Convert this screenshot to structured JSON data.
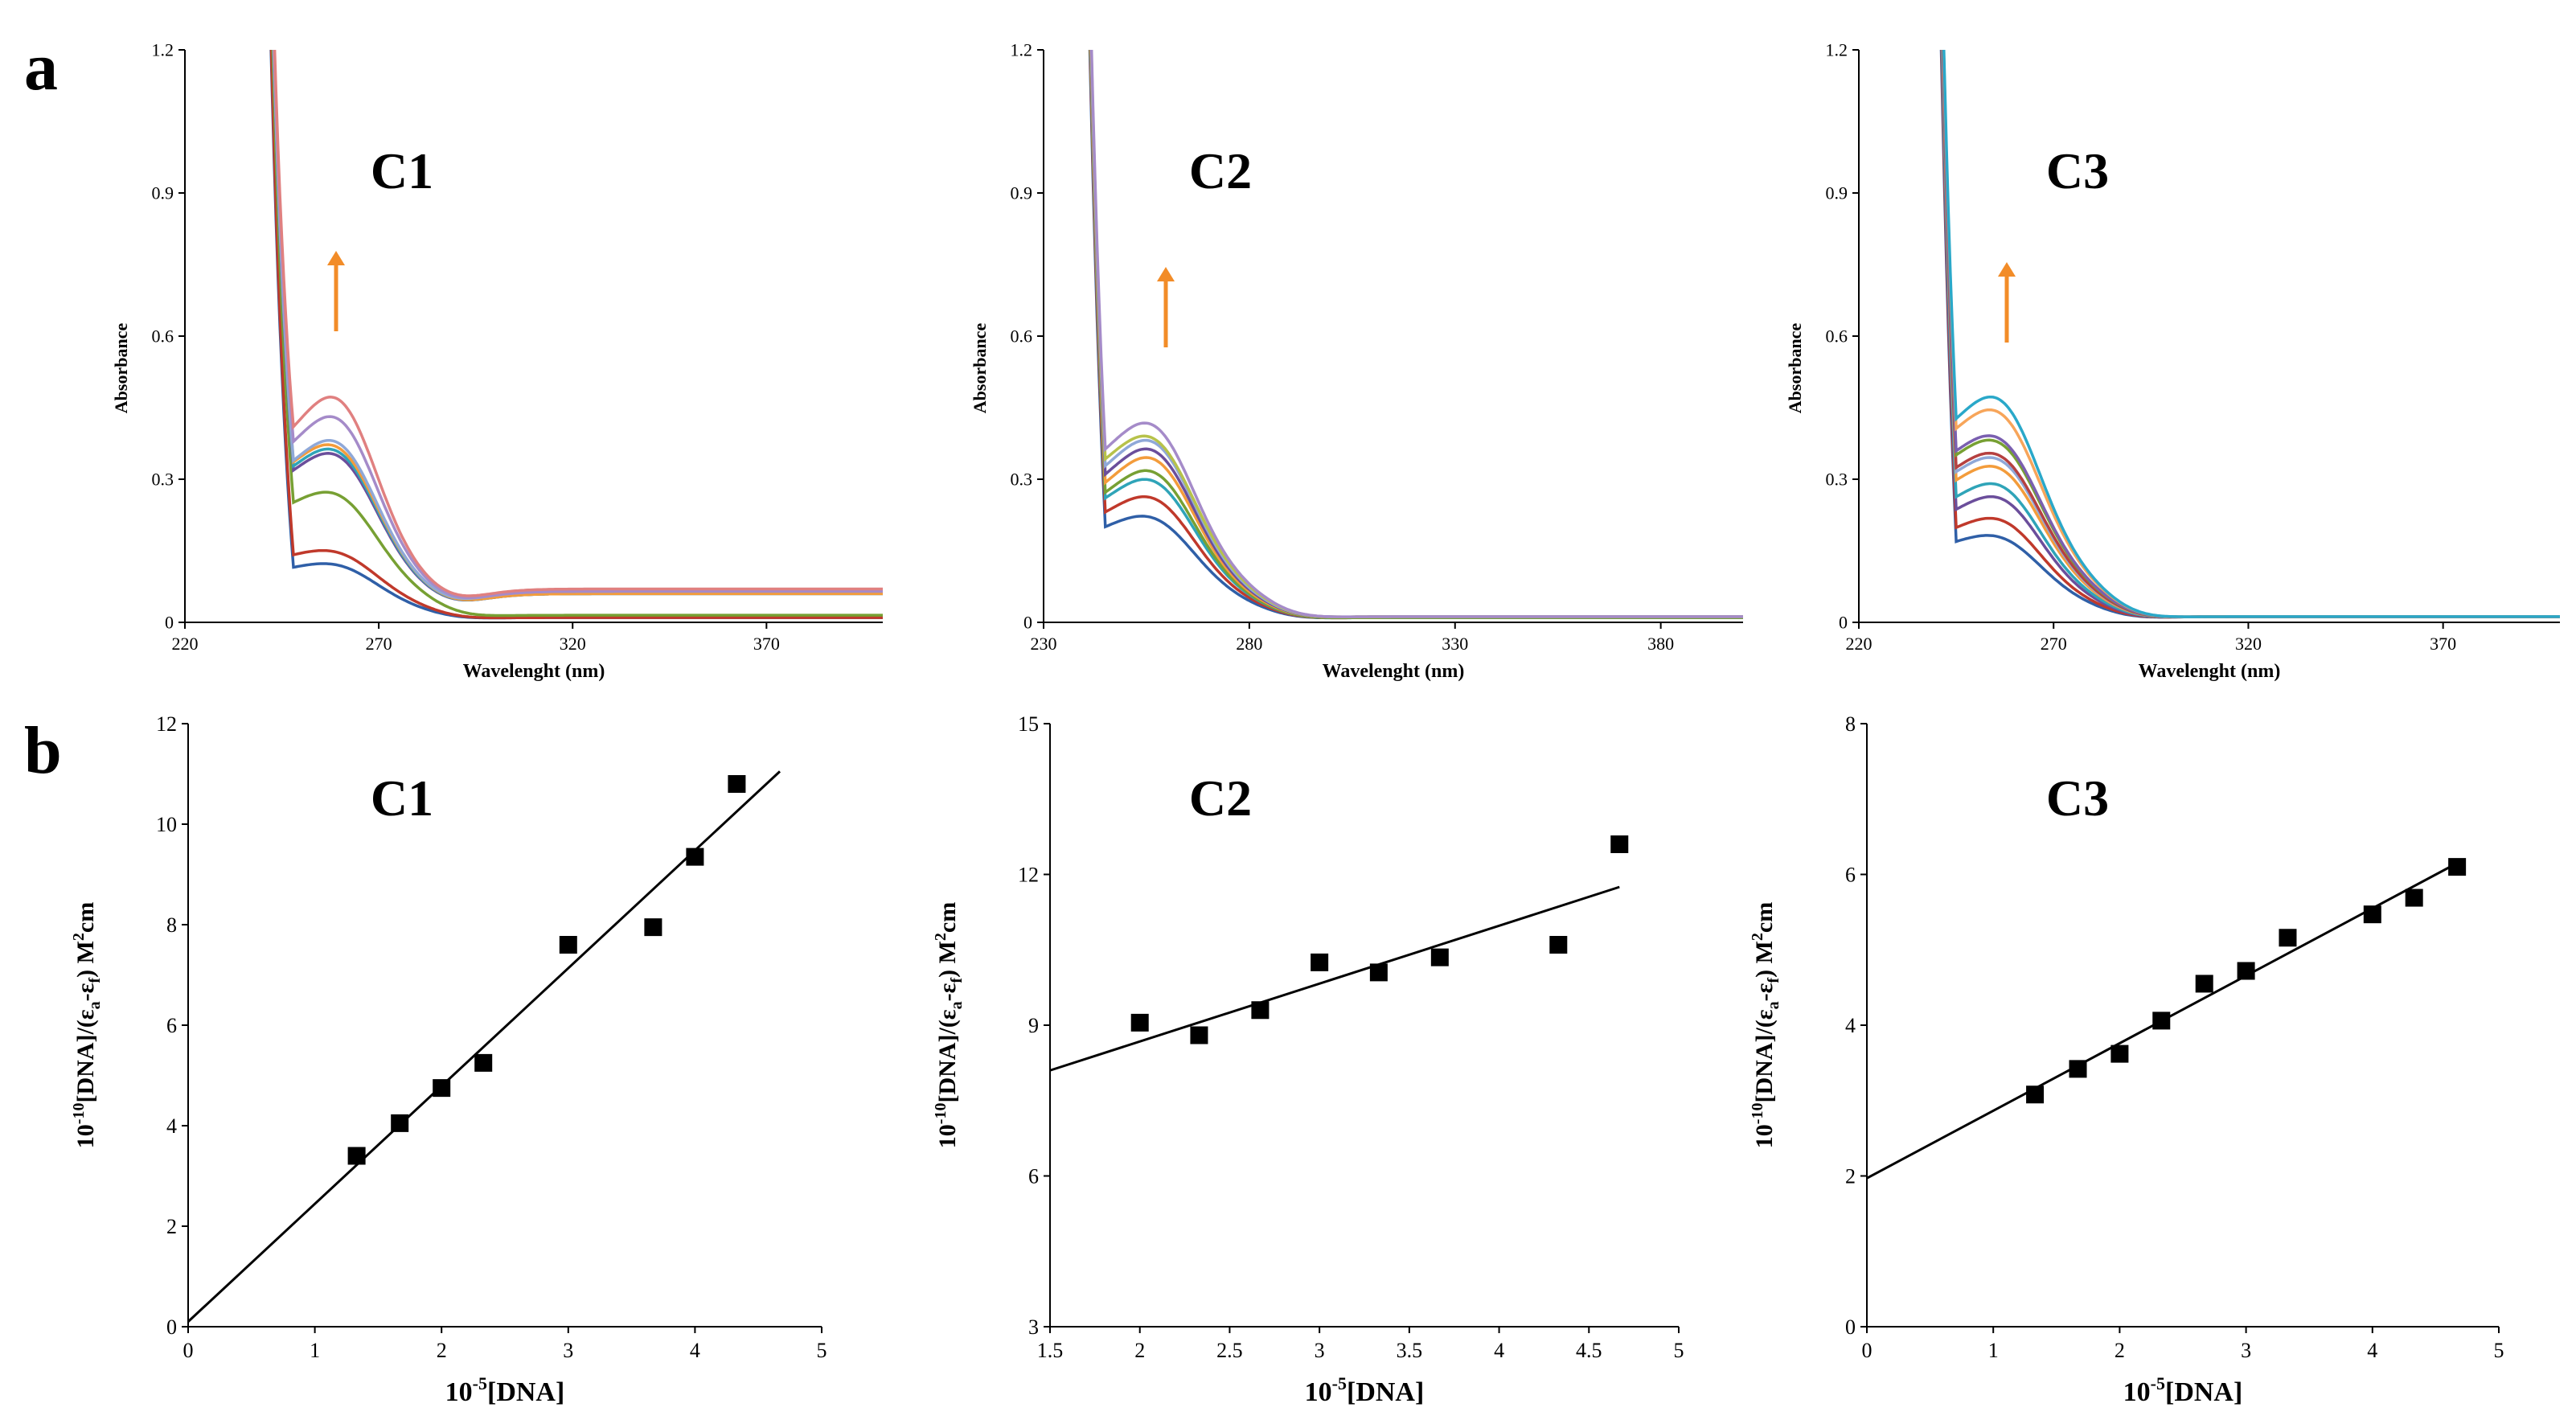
{
  "panel_labels": {
    "a": "a",
    "b": "b"
  },
  "chart_data": [
    {
      "id": "a1",
      "type": "line",
      "label": "C1",
      "xlabel": "Wavelenght (nm)",
      "ylabel": "Absorbance",
      "xlim": [
        220,
        400
      ],
      "ylim": [
        0,
        1.2
      ],
      "xticks": [
        220,
        270,
        320,
        370
      ],
      "yticks": [
        0,
        0.3,
        0.6,
        0.9,
        1.2
      ],
      "ytick_labels": [
        "0",
        "0.3",
        "0.6",
        "0.9",
        "1.2"
      ],
      "arrow": "increasing",
      "series": [
        {
          "name": "s1",
          "color": "#2F5FA7",
          "baseline": 0.13,
          "peak": 0.135,
          "tail": 0.01
        },
        {
          "name": "s2",
          "color": "#C0392B",
          "baseline": 0.16,
          "peak": 0.165,
          "tail": 0.01
        },
        {
          "name": "s3",
          "color": "#77A033",
          "baseline": 0.28,
          "peak": 0.3,
          "tail": 0.015
        },
        {
          "name": "s4",
          "color": "#6B4E9B",
          "baseline": 0.35,
          "peak": 0.39,
          "tail": 0.06
        },
        {
          "name": "s5",
          "color": "#2FA4B8",
          "baseline": 0.36,
          "peak": 0.4,
          "tail": 0.06
        },
        {
          "name": "s6",
          "color": "#F39C3B",
          "baseline": 0.37,
          "peak": 0.41,
          "tail": 0.06
        },
        {
          "name": "s7",
          "color": "#8FA8D8",
          "baseline": 0.37,
          "peak": 0.42,
          "tail": 0.065
        },
        {
          "name": "s8",
          "color": "#A58BC9",
          "baseline": 0.41,
          "peak": 0.475,
          "tail": 0.065
        },
        {
          "name": "s9",
          "color": "#E08080",
          "baseline": 0.44,
          "peak": 0.52,
          "tail": 0.07
        }
      ]
    },
    {
      "id": "a2",
      "type": "line",
      "label": "C2",
      "xlabel": "Wavelenght (nm)",
      "ylabel": "Absorbance",
      "xlim": [
        230,
        400
      ],
      "ylim": [
        0,
        1.2
      ],
      "xticks": [
        230,
        280,
        330,
        380
      ],
      "yticks": [
        0,
        0.3,
        0.6,
        0.9,
        1.2
      ],
      "ytick_labels": [
        "0",
        "0.3",
        "0.6",
        "0.9",
        "1.2"
      ],
      "arrow": "increasing",
      "series": [
        {
          "name": "s1",
          "color": "#2F5FA7",
          "baseline": 0.22,
          "peak": 0.245,
          "tail": 0.01
        },
        {
          "name": "s2",
          "color": "#C0392B",
          "baseline": 0.25,
          "peak": 0.29,
          "tail": 0.01
        },
        {
          "name": "s3",
          "color": "#2FA4B8",
          "baseline": 0.28,
          "peak": 0.33,
          "tail": 0.01
        },
        {
          "name": "s4",
          "color": "#77A033",
          "baseline": 0.29,
          "peak": 0.35,
          "tail": 0.01
        },
        {
          "name": "s5",
          "color": "#F39C3B",
          "baseline": 0.31,
          "peak": 0.38,
          "tail": 0.012
        },
        {
          "name": "s6",
          "color": "#6B4E9B",
          "baseline": 0.33,
          "peak": 0.4,
          "tail": 0.012
        },
        {
          "name": "s7",
          "color": "#8FA8D8",
          "baseline": 0.35,
          "peak": 0.42,
          "tail": 0.012
        },
        {
          "name": "s8",
          "color": "#B7C24A",
          "baseline": 0.37,
          "peak": 0.43,
          "tail": 0.012
        },
        {
          "name": "s9",
          "color": "#A58BC9",
          "baseline": 0.39,
          "peak": 0.46,
          "tail": 0.012
        }
      ]
    },
    {
      "id": "a3",
      "type": "line",
      "label": "C3",
      "xlabel": "Wavelenght (nm)",
      "ylabel": "Absorbance",
      "xlim": [
        220,
        400
      ],
      "ylim": [
        0,
        1.2
      ],
      "xticks": [
        220,
        270,
        320,
        370
      ],
      "yticks": [
        0,
        0.3,
        0.6,
        0.9,
        1.2
      ],
      "ytick_labels": [
        "0",
        "0.3",
        "0.6",
        "0.9",
        "1.2"
      ],
      "arrow": "increasing",
      "series": [
        {
          "name": "s1",
          "color": "#2F5FA7",
          "baseline": 0.19,
          "peak": 0.2,
          "tail": 0.012
        },
        {
          "name": "s2",
          "color": "#C0392B",
          "baseline": 0.22,
          "peak": 0.24,
          "tail": 0.012
        },
        {
          "name": "s3",
          "color": "#6B4E9B",
          "baseline": 0.26,
          "peak": 0.29,
          "tail": 0.012
        },
        {
          "name": "s4",
          "color": "#2FA4B8",
          "baseline": 0.29,
          "peak": 0.32,
          "tail": 0.012
        },
        {
          "name": "s5",
          "color": "#F39C3B",
          "baseline": 0.33,
          "peak": 0.36,
          "tail": 0.012
        },
        {
          "name": "s6",
          "color": "#8FA8D8",
          "baseline": 0.35,
          "peak": 0.38,
          "tail": 0.012
        },
        {
          "name": "s7",
          "color": "#B54040",
          "baseline": 0.36,
          "peak": 0.39,
          "tail": 0.012
        },
        {
          "name": "s8",
          "color": "#77A033",
          "baseline": 0.39,
          "peak": 0.42,
          "tail": 0.012
        },
        {
          "name": "s9",
          "color": "#7A5FB0",
          "baseline": 0.4,
          "peak": 0.43,
          "tail": 0.012
        },
        {
          "name": "s10",
          "color": "#F7A55A",
          "baseline": 0.45,
          "peak": 0.49,
          "tail": 0.012
        },
        {
          "name": "s11",
          "color": "#2AA8C9",
          "baseline": 0.47,
          "peak": 0.52,
          "tail": 0.012
        }
      ]
    },
    {
      "id": "b1",
      "type": "scatter",
      "label": "C1",
      "xlabel": "10-5[DNA]",
      "ylabel": "10-10[DNA]/(εa-εf) M2cm",
      "xlim": [
        0,
        5
      ],
      "ylim": [
        0,
        12
      ],
      "xticks": [
        0,
        1,
        2,
        3,
        4,
        5
      ],
      "yticks": [
        0,
        2,
        4,
        6,
        8,
        10,
        12
      ],
      "xtick_labels": [
        "0",
        "1",
        "2",
        "3",
        "4",
        "5"
      ],
      "ytick_labels": [
        "0",
        "2",
        "4",
        "6",
        "8",
        "10",
        "12"
      ],
      "x": [
        1.33,
        1.67,
        2.0,
        2.33,
        3.0,
        3.67,
        4.0,
        4.33
      ],
      "y": [
        3.4,
        4.05,
        4.75,
        5.25,
        7.6,
        7.95,
        9.35,
        10.8
      ],
      "fit": {
        "x": [
          0,
          4.67
        ],
        "y": [
          0.1,
          11.05
        ]
      }
    },
    {
      "id": "b2",
      "type": "scatter",
      "label": "C2",
      "xlabel": "10-5[DNA]",
      "ylabel": "10-10[DNA]/(εa-εf) M2cm",
      "xlim": [
        1.5,
        5
      ],
      "ylim": [
        3,
        15
      ],
      "xticks": [
        1.5,
        2,
        2.5,
        3,
        3.5,
        4,
        4.5,
        5
      ],
      "yticks": [
        3,
        6,
        9,
        12,
        15
      ],
      "xtick_labels": [
        "1.5",
        "2",
        "2.5",
        "3",
        "3.5",
        "4",
        "4.5",
        "5"
      ],
      "ytick_labels": [
        "3",
        "6",
        "9",
        "12",
        "15"
      ],
      "x": [
        2.0,
        2.33,
        2.67,
        3.0,
        3.33,
        3.67,
        4.33,
        4.67
      ],
      "y": [
        9.05,
        8.8,
        9.3,
        10.25,
        10.05,
        10.35,
        10.6,
        12.6
      ],
      "fit": {
        "x": [
          1.5,
          4.67
        ],
        "y": [
          8.1,
          11.75
        ]
      }
    },
    {
      "id": "b3",
      "type": "scatter",
      "label": "C3",
      "xlabel": "10-5[DNA]",
      "ylabel": "10-10[DNA]/(εa-εf) M2cm",
      "xlim": [
        0,
        5
      ],
      "ylim": [
        0,
        8
      ],
      "xticks": [
        0,
        1,
        2,
        3,
        4,
        5
      ],
      "yticks": [
        0,
        2,
        4,
        6,
        8
      ],
      "xtick_labels": [
        "0",
        "1",
        "2",
        "3",
        "4",
        "5"
      ],
      "ytick_labels": [
        "0",
        "2",
        "4",
        "6",
        "8"
      ],
      "x": [
        1.33,
        1.67,
        2.0,
        2.33,
        2.67,
        3.0,
        3.33,
        4.0,
        4.33,
        4.67
      ],
      "y": [
        3.08,
        3.42,
        3.62,
        4.06,
        4.55,
        4.72,
        5.16,
        5.47,
        5.69,
        6.1
      ],
      "fit": {
        "x": [
          0,
          4.67
        ],
        "y": [
          1.97,
          6.15
        ]
      }
    }
  ]
}
